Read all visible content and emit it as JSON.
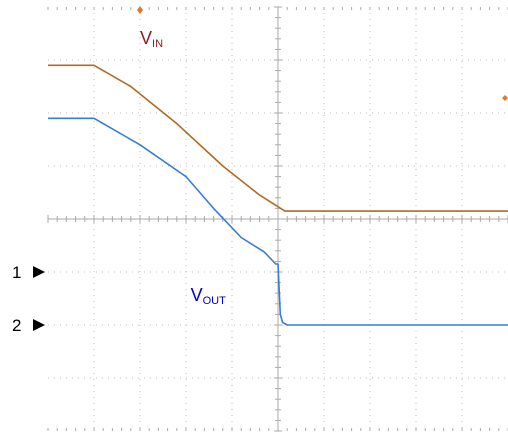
{
  "chart_data": {
    "type": "line",
    "title": "",
    "xlabel": "",
    "ylabel": "",
    "grid": true,
    "x_divisions": 10,
    "y_divisions": 8,
    "xlim": [
      0,
      10
    ],
    "ylim": [
      -4,
      4
    ],
    "channel_markers": [
      {
        "label": "1",
        "level": -1
      },
      {
        "label": "2",
        "level": -2
      }
    ],
    "series": [
      {
        "name": "VIN",
        "label_main": "V",
        "label_sub": "IN",
        "color": "#b06a28",
        "label_color": "#8b1e1e",
        "label_at": [
          2.0,
          3.3
        ],
        "points": [
          [
            0,
            2.9
          ],
          [
            1.0,
            2.9
          ],
          [
            1.8,
            2.5
          ],
          [
            2.8,
            1.8
          ],
          [
            3.8,
            1.0
          ],
          [
            4.6,
            0.45
          ],
          [
            5.15,
            0.15
          ],
          [
            5.3,
            0.15
          ],
          [
            10,
            0.15
          ]
        ]
      },
      {
        "name": "VOUT",
        "label_main": "V",
        "label_sub": "OUT",
        "color": "#3a7bd5",
        "label_color": "#0000cc",
        "label_at": [
          3.1,
          -1.55
        ],
        "points": [
          [
            0,
            1.9
          ],
          [
            1.0,
            1.9
          ],
          [
            2.0,
            1.4
          ],
          [
            3.0,
            0.8
          ],
          [
            3.6,
            0.2
          ],
          [
            4.2,
            -0.35
          ],
          [
            4.7,
            -0.62
          ],
          [
            4.95,
            -0.85
          ],
          [
            5.0,
            -0.85
          ],
          [
            5.05,
            -1.8
          ],
          [
            5.1,
            -1.95
          ],
          [
            5.2,
            -2.0
          ],
          [
            10,
            -2.0
          ]
        ]
      }
    ]
  }
}
